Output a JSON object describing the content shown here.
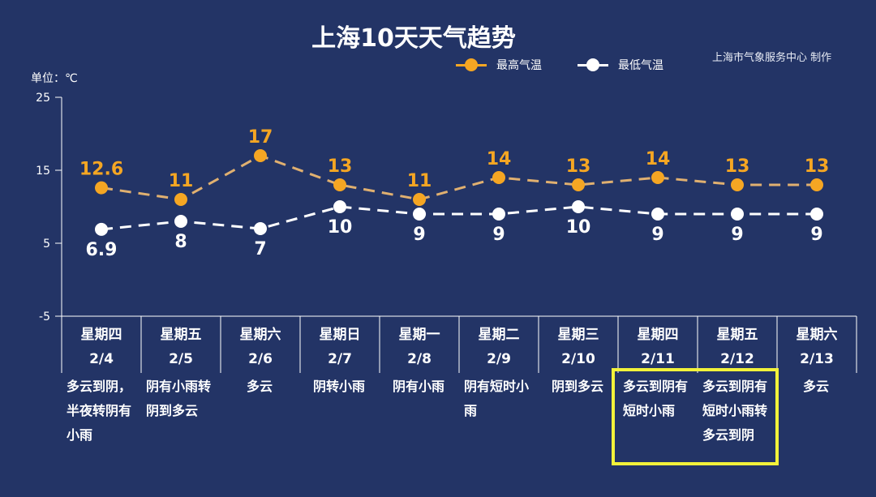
{
  "title": "上海10天天气趋势",
  "credit": "上海市气象服务中心 制作",
  "colors": {
    "background": "#233466",
    "high": "#f5a623",
    "high_line": "#e0b070",
    "low": "#ffffff",
    "highlight_box": "#f2f23a"
  },
  "chart_data": {
    "type": "line",
    "title": "上海10天天气趋势",
    "ylabel": "单位：℃",
    "ylim": [
      -5,
      25
    ],
    "yticks": [
      -5,
      5,
      15,
      25
    ],
    "grid": false,
    "legend_position": "top-right",
    "categories": [
      "2/4",
      "2/5",
      "2/6",
      "2/7",
      "2/8",
      "2/9",
      "2/10",
      "2/11",
      "2/12",
      "2/13"
    ],
    "weekdays": [
      "星期四",
      "星期五",
      "星期六",
      "星期日",
      "星期一",
      "星期二",
      "星期三",
      "星期四",
      "星期五",
      "星期六"
    ],
    "weather": [
      "多云到阴，半夜转阴有小雨",
      "阴有小雨转阴到多云",
      "多云",
      "阴转小雨",
      "阴有小雨",
      "阴有短时小雨",
      "阴到多云",
      "多云到阴有短时小雨",
      "多云到阴有短时小雨转多云到阴",
      "多云"
    ],
    "highlighted": [
      "2/11",
      "2/12"
    ],
    "series": [
      {
        "name": "最高气温",
        "values": [
          12.6,
          11,
          17,
          13,
          11,
          14,
          13,
          14,
          13,
          13
        ],
        "labels": [
          "12.6",
          "11",
          "17",
          "13",
          "11",
          "14",
          "13",
          "14",
          "13",
          "13"
        ]
      },
      {
        "name": "最低气温",
        "values": [
          6.9,
          8,
          7,
          10,
          9,
          9,
          10,
          9,
          9,
          9
        ],
        "labels": [
          "6.9",
          "8",
          "7",
          "10",
          "9",
          "9",
          "10",
          "9",
          "9",
          "9"
        ]
      }
    ]
  }
}
